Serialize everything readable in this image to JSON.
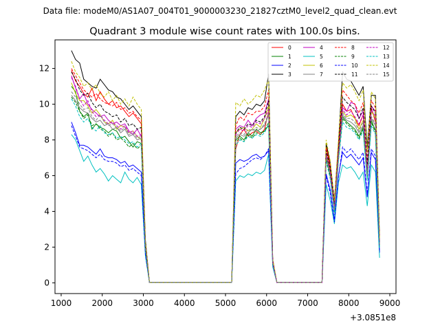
{
  "figure": {
    "suptitle": "Data file: modeM0/AS1A07_004T01_9000003230_21827cztM0_level2_quad_clean.evt"
  },
  "chart_data": {
    "type": "line",
    "title": "Quadrant 3 module wise count rates with 100.0s bins.",
    "xlabel": "",
    "ylabel": "",
    "x_offset_label": "+3.0851e8",
    "xlim": [
      850,
      9150
    ],
    "ylim": [
      -0.6,
      13.6
    ],
    "x_ticks": [
      1000,
      2000,
      3000,
      4000,
      5000,
      6000,
      7000,
      8000,
      9000
    ],
    "y_ticks": [
      0,
      2,
      4,
      6,
      8,
      10,
      12
    ],
    "grid": false,
    "legend": {
      "placement": "top-right",
      "columns": 4
    },
    "x": [
      1250,
      1350,
      1450,
      1550,
      1650,
      1750,
      1850,
      1950,
      2050,
      2150,
      2250,
      2350,
      2450,
      2550,
      2650,
      2750,
      2850,
      2950,
      3050,
      3150,
      5150,
      5250,
      5350,
      5450,
      5550,
      5650,
      5750,
      5850,
      5950,
      6050,
      6150,
      6250,
      7350,
      7450,
      7550,
      7650,
      7750,
      7850,
      7950,
      8050,
      8150,
      8250,
      8350,
      8450,
      8550,
      8650,
      8750
    ],
    "series": [
      {
        "name": "0",
        "color": "#ff0000",
        "dash": "solid",
        "values": [
          11.9,
          11.3,
          11.0,
          10.6,
          10.4,
          10.9,
          10.2,
          10.7,
          10.3,
          10.0,
          10.2,
          9.8,
          9.9,
          9.6,
          9.3,
          9.5,
          9.2,
          8.9,
          2.2,
          0.02,
          0.02,
          7.5,
          8.3,
          8.6,
          8.2,
          8.4,
          8.5,
          8.3,
          8.6,
          9.6,
          1.2,
          0.02,
          0.02,
          7.6,
          6.5,
          4.5,
          7.5,
          10.0,
          9.6,
          9.7,
          9.2,
          8.8,
          9.4,
          6.4,
          9.8,
          9.0,
          2.3
        ]
      },
      {
        "name": "1",
        "color": "#008000",
        "dash": "solid",
        "values": [
          11.0,
          10.7,
          9.6,
          9.3,
          9.5,
          8.6,
          8.9,
          8.7,
          8.6,
          8.4,
          8.6,
          8.5,
          8.1,
          8.2,
          7.9,
          7.6,
          7.9,
          7.8,
          2.0,
          0.02,
          0.02,
          8.0,
          8.2,
          8.0,
          8.4,
          8.2,
          8.6,
          8.4,
          8.5,
          8.8,
          1.2,
          0.02,
          0.02,
          7.2,
          6.0,
          4.0,
          7.0,
          9.3,
          9.0,
          8.8,
          8.6,
          8.2,
          8.7,
          5.9,
          9.1,
          8.5,
          2.1
        ]
      },
      {
        "name": "2",
        "color": "#0000ff",
        "dash": "solid",
        "values": [
          9.0,
          8.4,
          7.7,
          7.7,
          7.6,
          7.4,
          7.2,
          7.5,
          7.1,
          7.0,
          7.0,
          6.9,
          6.7,
          6.8,
          6.5,
          6.6,
          6.4,
          6.2,
          1.7,
          0.02,
          0.02,
          6.7,
          6.9,
          6.8,
          6.9,
          7.1,
          7.2,
          7.0,
          7.1,
          7.4,
          1.0,
          0.02,
          0.02,
          6.1,
          5.2,
          3.5,
          6.0,
          7.3,
          7.0,
          7.2,
          6.9,
          6.6,
          7.0,
          4.8,
          7.3,
          6.9,
          1.7
        ]
      },
      {
        "name": "3",
        "color": "#000000",
        "dash": "solid",
        "values": [
          13.0,
          12.5,
          12.3,
          11.4,
          11.2,
          11.0,
          10.9,
          11.4,
          11.1,
          10.8,
          10.7,
          10.4,
          10.3,
          10.0,
          9.7,
          9.9,
          9.6,
          9.3,
          2.4,
          0.02,
          0.02,
          9.3,
          9.6,
          9.4,
          9.8,
          9.7,
          10.0,
          9.9,
          10.2,
          11.7,
          1.3,
          0.02,
          0.02,
          7.8,
          6.7,
          4.6,
          7.8,
          11.8,
          11.4,
          11.3,
          10.9,
          10.5,
          11.0,
          7.6,
          10.5,
          10.5,
          2.6
        ]
      },
      {
        "name": "4",
        "color": "#c000c0",
        "dash": "solid",
        "values": [
          11.6,
          10.9,
          10.3,
          10.6,
          10.0,
          9.7,
          9.5,
          9.3,
          9.4,
          9.1,
          8.9,
          9.0,
          8.8,
          8.9,
          8.5,
          8.3,
          8.6,
          8.2,
          2.1,
          0.02,
          0.02,
          8.6,
          8.8,
          8.7,
          9.1,
          8.8,
          9.2,
          9.4,
          9.5,
          10.3,
          1.2,
          0.02,
          0.02,
          7.3,
          6.3,
          4.3,
          7.2,
          9.8,
          9.6,
          10.1,
          10.0,
          9.2,
          9.6,
          6.1,
          9.9,
          9.6,
          2.3
        ]
      },
      {
        "name": "5",
        "color": "#00c0c0",
        "dash": "solid",
        "values": [
          8.3,
          8.0,
          7.4,
          6.8,
          7.1,
          6.6,
          6.2,
          6.4,
          6.1,
          5.7,
          6.0,
          5.8,
          5.6,
          6.2,
          5.8,
          5.6,
          5.9,
          5.5,
          1.5,
          0.02,
          0.02,
          5.7,
          6.0,
          5.9,
          6.1,
          6.0,
          6.2,
          6.1,
          6.3,
          7.2,
          0.9,
          0.02,
          0.02,
          5.5,
          4.6,
          3.3,
          5.6,
          6.6,
          6.4,
          6.5,
          6.2,
          5.8,
          6.2,
          4.3,
          6.6,
          6.2,
          1.4
        ]
      },
      {
        "name": "6",
        "color": "#c0c000",
        "dash": "solid",
        "values": [
          11.2,
          10.6,
          10.2,
          10.2,
          9.9,
          9.5,
          9.7,
          9.4,
          9.0,
          8.9,
          9.1,
          8.6,
          8.8,
          8.7,
          8.4,
          8.5,
          8.2,
          8.0,
          2.0,
          0.02,
          0.02,
          8.4,
          8.6,
          8.7,
          8.5,
          8.6,
          8.9,
          8.7,
          9.2,
          9.9,
          1.2,
          0.02,
          0.02,
          7.3,
          6.2,
          4.3,
          7.3,
          9.6,
          9.3,
          9.4,
          9.2,
          8.6,
          9.1,
          6.2,
          9.6,
          9.2,
          2.2
        ]
      },
      {
        "name": "7",
        "color": "#808080",
        "dash": "solid",
        "values": [
          10.5,
          10.2,
          9.8,
          9.6,
          9.5,
          9.2,
          9.0,
          9.1,
          8.8,
          8.9,
          8.6,
          8.7,
          8.4,
          8.6,
          8.2,
          8.3,
          8.0,
          8.1,
          2.0,
          0.02,
          0.02,
          8.1,
          8.3,
          8.2,
          8.4,
          8.6,
          8.5,
          8.6,
          8.8,
          9.4,
          1.1,
          0.02,
          0.02,
          7.0,
          5.9,
          4.0,
          7.0,
          9.4,
          9.1,
          9.0,
          8.8,
          8.4,
          8.8,
          5.9,
          9.2,
          8.8,
          2.1
        ]
      },
      {
        "name": "8",
        "color": "#ff0000",
        "dash": "dashed",
        "values": [
          12.0,
          11.6,
          11.2,
          10.8,
          10.6,
          10.4,
          10.6,
          10.3,
          10.1,
          10.0,
          9.9,
          10.1,
          9.7,
          9.8,
          9.5,
          9.6,
          9.3,
          9.1,
          2.2,
          0.02,
          0.02,
          8.8,
          9.3,
          9.1,
          9.5,
          9.4,
          9.6,
          9.6,
          9.9,
          10.8,
          1.3,
          0.02,
          0.02,
          7.6,
          6.6,
          4.5,
          7.6,
          10.8,
          10.5,
          10.2,
          10.0,
          9.5,
          10.1,
          6.8,
          10.2,
          9.8,
          2.4
        ]
      },
      {
        "name": "9",
        "color": "#008000",
        "dash": "dashed",
        "values": [
          10.4,
          10.1,
          9.6,
          9.2,
          9.4,
          8.8,
          8.9,
          8.6,
          8.5,
          8.2,
          8.4,
          8.0,
          8.1,
          7.9,
          7.6,
          7.8,
          7.5,
          7.7,
          1.9,
          0.02,
          0.02,
          7.9,
          8.1,
          7.9,
          8.3,
          8.1,
          8.4,
          8.3,
          8.5,
          9.0,
          1.1,
          0.02,
          0.02,
          7.0,
          5.9,
          3.9,
          6.9,
          9.2,
          8.9,
          8.7,
          8.5,
          8.1,
          8.6,
          5.8,
          9.0,
          8.4,
          2.0
        ]
      },
      {
        "name": "10",
        "color": "#0000ff",
        "dash": "dashed",
        "values": [
          8.8,
          8.2,
          7.6,
          7.5,
          7.4,
          7.2,
          7.0,
          7.2,
          6.9,
          6.8,
          6.8,
          6.7,
          6.5,
          6.6,
          6.3,
          6.4,
          6.2,
          6.0,
          1.6,
          0.02,
          0.02,
          6.1,
          6.4,
          6.5,
          6.7,
          6.9,
          7.0,
          6.9,
          7.1,
          7.5,
          1.0,
          0.02,
          0.02,
          6.0,
          5.0,
          3.4,
          5.9,
          7.6,
          7.3,
          7.5,
          7.2,
          6.9,
          7.3,
          5.0,
          7.5,
          7.1,
          1.7
        ]
      },
      {
        "name": "11",
        "color": "#000000",
        "dash": "dashed",
        "values": [
          11.8,
          11.4,
          10.8,
          10.5,
          10.6,
          10.1,
          9.8,
          10.0,
          9.6,
          9.5,
          9.3,
          9.4,
          9.0,
          9.2,
          8.8,
          8.9,
          8.6,
          8.7,
          2.1,
          0.02,
          0.02,
          8.4,
          8.7,
          8.6,
          8.9,
          8.8,
          9.1,
          9.0,
          9.3,
          10.2,
          1.2,
          0.02,
          0.02,
          7.4,
          6.4,
          4.4,
          7.4,
          10.4,
          10.1,
          9.9,
          9.7,
          9.2,
          9.8,
          6.6,
          9.9,
          9.5,
          2.3
        ]
      },
      {
        "name": "12",
        "color": "#c000c0",
        "dash": "dashed",
        "values": [
          11.5,
          11.0,
          10.3,
          9.9,
          10.2,
          9.6,
          9.3,
          9.4,
          9.1,
          8.9,
          9.0,
          8.8,
          8.6,
          8.8,
          8.4,
          8.5,
          8.2,
          8.3,
          2.0,
          0.02,
          0.02,
          8.3,
          8.6,
          8.5,
          8.8,
          8.7,
          9.0,
          8.9,
          9.2,
          9.7,
          1.2,
          0.02,
          0.02,
          7.2,
          6.2,
          4.2,
          7.2,
          9.7,
          9.4,
          9.6,
          9.3,
          8.9,
          9.4,
          6.3,
          9.7,
          9.3,
          2.2
        ]
      },
      {
        "name": "13",
        "color": "#00c0c0",
        "dash": "dashed",
        "values": [
          10.3,
          9.9,
          9.3,
          9.0,
          9.2,
          8.7,
          8.5,
          8.8,
          8.4,
          8.3,
          8.4,
          8.1,
          8.2,
          8.0,
          7.8,
          7.9,
          7.6,
          7.8,
          1.9,
          0.02,
          0.02,
          7.7,
          8.0,
          7.9,
          8.2,
          8.1,
          8.3,
          8.2,
          8.4,
          8.9,
          1.1,
          0.02,
          0.02,
          6.8,
          5.8,
          3.8,
          6.8,
          9.0,
          8.7,
          8.6,
          8.4,
          8.0,
          8.5,
          5.7,
          8.8,
          8.3,
          2.0
        ]
      },
      {
        "name": "14",
        "color": "#c0c000",
        "dash": "dashed",
        "values": [
          12.4,
          11.8,
          11.5,
          11.0,
          11.2,
          10.8,
          11.1,
          10.6,
          10.4,
          10.7,
          10.2,
          10.5,
          10.0,
          10.3,
          9.9,
          10.4,
          10.0,
          9.7,
          2.3,
          0.02,
          0.02,
          10.1,
          9.9,
          10.3,
          10.0,
          10.2,
          10.5,
          10.4,
          10.8,
          11.4,
          1.3,
          0.02,
          0.02,
          8.0,
          6.8,
          4.6,
          8.0,
          11.2,
          10.9,
          11.1,
          10.7,
          10.2,
          10.8,
          7.3,
          10.7,
          10.3,
          2.5
        ]
      },
      {
        "name": "15",
        "color": "#808080",
        "dash": "dashed",
        "values": [
          10.7,
          10.4,
          10.0,
          9.7,
          9.8,
          9.3,
          9.1,
          9.4,
          9.0,
          8.8,
          8.9,
          8.7,
          8.5,
          8.7,
          8.3,
          8.4,
          8.1,
          8.2,
          2.0,
          0.02,
          0.02,
          8.2,
          8.4,
          8.3,
          8.6,
          8.5,
          8.7,
          8.6,
          8.9,
          9.5,
          1.1,
          0.02,
          0.02,
          7.1,
          6.0,
          4.1,
          7.1,
          9.5,
          9.2,
          9.2,
          9.0,
          8.5,
          9.0,
          6.0,
          9.3,
          8.9,
          2.1
        ]
      }
    ]
  }
}
